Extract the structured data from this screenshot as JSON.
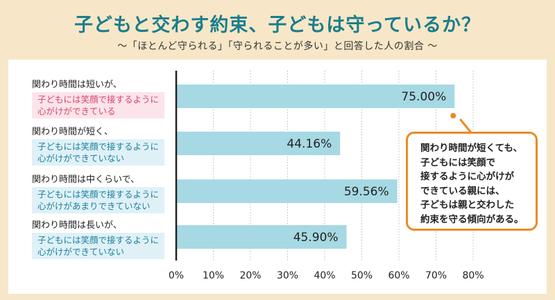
{
  "title": "子どもと交わす約束、子どもは守っているか？",
  "subtitle": "～「ほとんど守られる」「守られることが多い」と回答した人の割合 ～",
  "rows": [
    {
      "prefix": "関わり時間は短いが、",
      "note": [
        "子どもには笑顔で接するように",
        "心がけができている"
      ],
      "highlight": "pink"
    },
    {
      "prefix": "関わり時間が短く、",
      "note": [
        "子どもには笑顔で接するように",
        "心がけができていない"
      ],
      "highlight": "blue"
    },
    {
      "prefix": "関わり時間は中くらいで、",
      "note": [
        "子どもには笑顔で接するように",
        "心がけがあまりできていない"
      ],
      "highlight": "blue"
    },
    {
      "prefix": "関わり時間は長いが、",
      "note": [
        "子どもには笑顔で接するように",
        "心がけができていない"
      ],
      "highlight": "blue"
    }
  ],
  "callout": {
    "lines": [
      "関わり時間が短くても、",
      "子どもには笑顔で",
      "接するように心がけが",
      "できている親には、",
      "子どもは親と交わした",
      "約束を守る傾向がある。"
    ]
  },
  "colors": {
    "background": "#f7e7c8",
    "title": "#1a7d8c",
    "bar": "#a6d9e3",
    "callout_border": "#ec8a23",
    "pink_note": "#d6456c",
    "blue_note": "#1a7f9c"
  },
  "chart_data": {
    "type": "bar",
    "orientation": "horizontal",
    "categories": [
      "関わり時間は短いが、子どもには笑顔で接するように心がけができている",
      "関わり時間が短く、子どもには笑顔で接するように心がけができていない",
      "関わり時間は中くらいで、子どもには笑顔で接するように心がけがあまりできていない",
      "関わり時間は長いが、子どもには笑顔で接するように心がけができていない"
    ],
    "values": [
      75.0,
      44.16,
      59.56,
      45.9
    ],
    "data_labels": [
      "75.00%",
      "44.16%",
      "59.56%",
      "45.90%"
    ],
    "xlim": [
      0,
      80
    ],
    "xticks": [
      0,
      10,
      20,
      30,
      40,
      50,
      60,
      70,
      80
    ],
    "xtick_labels": [
      "0%",
      "10%",
      "20%",
      "30%",
      "40%",
      "50%",
      "60%",
      "70%",
      "80%"
    ],
    "grid": true,
    "legend": "none"
  }
}
